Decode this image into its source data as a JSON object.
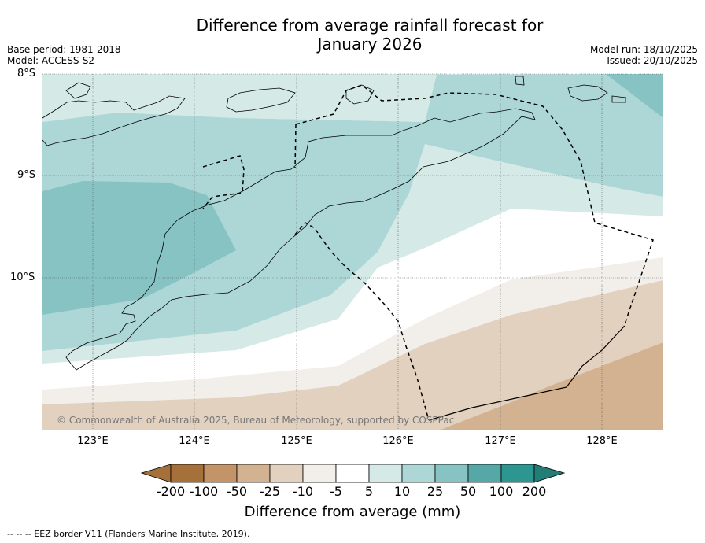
{
  "header": {
    "title_line1": "Difference from average rainfall forecast for",
    "title_line2": "January 2026",
    "base_period": "Base period: 1981-2018",
    "model": "Model: ACCESS-S2",
    "model_run": "Model run: 18/10/2025",
    "issued": "Issued: 20/10/2025"
  },
  "axes": {
    "lat_labels": [
      "8°S",
      "9°S",
      "10°S"
    ],
    "lon_labels": [
      "123°E",
      "124°E",
      "125°E",
      "126°E",
      "127°E",
      "128°E"
    ]
  },
  "map": {
    "copyright": "© Commonwealth of Australia 2025, Bureau of Meteorology, supported by COSPPac",
    "colors": {
      "dry_extreme": "#a6703a",
      "dry_100": "#c29468",
      "dry_50": "#d2b290",
      "dry_25": "#e3d1bf",
      "dry_10": "#f2eee9",
      "neutral": "#ffffff",
      "wet_5": "#d5e9e7",
      "wet_10": "#add7d6",
      "wet_25": "#86c3c2",
      "wet_50": "#55a8a6",
      "wet_100": "#2e9690",
      "wet_extreme": "#217d76"
    }
  },
  "colorbar": {
    "title": "Difference from average (mm)",
    "tick_labels": [
      "-200",
      "-100",
      "-50",
      "-25",
      "-10",
      "-5",
      "5",
      "10",
      "25",
      "50",
      "100",
      "200"
    ]
  },
  "footnote": "-- -- -- EEZ border V11 (Flanders Marine Institute, 2019)."
}
